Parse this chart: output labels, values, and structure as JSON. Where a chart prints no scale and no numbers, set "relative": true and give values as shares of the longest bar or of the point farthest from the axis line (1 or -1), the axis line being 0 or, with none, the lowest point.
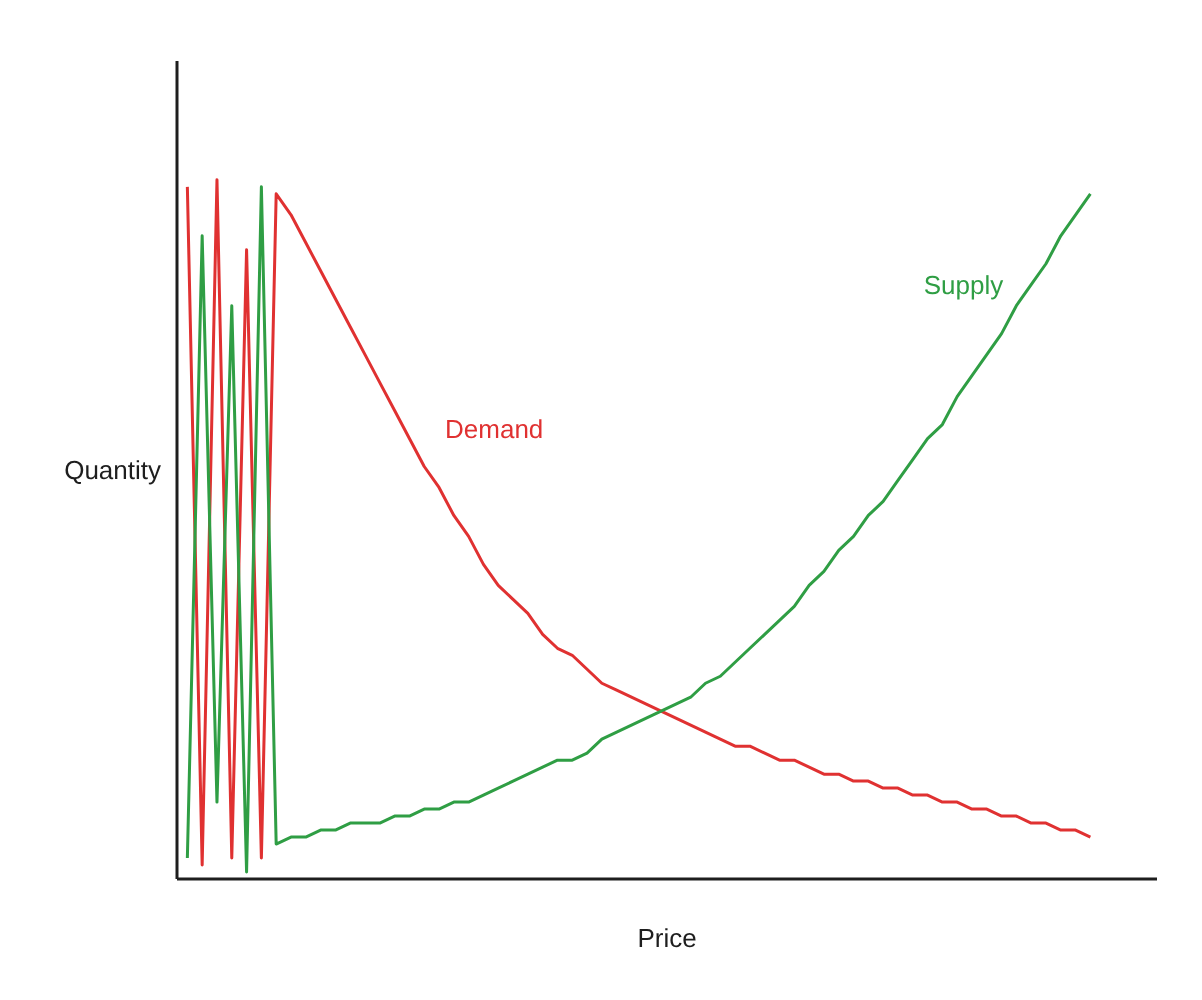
{
  "chart_data": {
    "type": "line",
    "relative": true,
    "xlabel": "Price",
    "ylabel": "Quantity",
    "categories": [
      null,
      null,
      null,
      null,
      null,
      null,
      null,
      null,
      null,
      null,
      null,
      null,
      null,
      null,
      null,
      null,
      null,
      null,
      null,
      null,
      null,
      null,
      null,
      null,
      null,
      null,
      null,
      null,
      null,
      null,
      null,
      null,
      null,
      null,
      null,
      null,
      null,
      null,
      null,
      null,
      null,
      null,
      null,
      null,
      null,
      null,
      null,
      null,
      null,
      null,
      null,
      null,
      null,
      null,
      null,
      null,
      null,
      null,
      null,
      null,
      null,
      null
    ],
    "series": [
      {
        "name": "Demand",
        "color": "#e03131",
        "values": [
          0.99,
          0.02,
          1.0,
          0.03,
          0.9,
          0.03,
          0.98,
          0.95,
          0.91,
          0.87,
          0.83,
          0.79,
          0.75,
          0.71,
          0.67,
          0.63,
          0.59,
          0.56,
          0.52,
          0.49,
          0.45,
          0.42,
          0.4,
          0.38,
          0.35,
          0.33,
          0.32,
          0.3,
          0.28,
          0.27,
          0.26,
          0.25,
          0.24,
          0.23,
          0.22,
          0.21,
          0.2,
          0.19,
          0.19,
          0.18,
          0.17,
          0.17,
          0.16,
          0.15,
          0.15,
          0.14,
          0.14,
          0.13,
          0.13,
          0.12,
          0.12,
          0.11,
          0.11,
          0.1,
          0.1,
          0.09,
          0.09,
          0.08,
          0.08,
          0.07,
          0.07,
          0.06
        ]
      },
      {
        "name": "Supply",
        "color": "#2f9e44",
        "values": [
          0.03,
          0.92,
          0.11,
          0.82,
          0.01,
          0.99,
          0.05,
          0.06,
          0.06,
          0.07,
          0.07,
          0.08,
          0.08,
          0.08,
          0.09,
          0.09,
          0.1,
          0.1,
          0.11,
          0.11,
          0.12,
          0.13,
          0.14,
          0.15,
          0.16,
          0.17,
          0.17,
          0.18,
          0.2,
          0.21,
          0.22,
          0.23,
          0.24,
          0.25,
          0.26,
          0.28,
          0.29,
          0.31,
          0.33,
          0.35,
          0.37,
          0.39,
          0.42,
          0.44,
          0.47,
          0.49,
          0.52,
          0.54,
          0.57,
          0.6,
          0.63,
          0.65,
          0.69,
          0.72,
          0.75,
          0.78,
          0.82,
          0.85,
          0.88,
          0.92,
          0.95,
          0.98
        ]
      }
    ]
  }
}
